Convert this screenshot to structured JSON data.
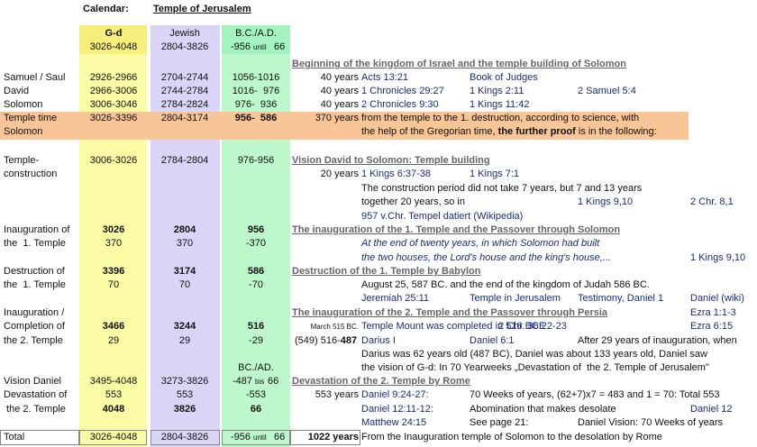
{
  "rows": [
    [
      "Calendar:",
      "Temple of Jerusalem"
    ],
    [
      "G-d",
      "Jewish",
      "B.C./A.D."
    ],
    [
      "3026-4048",
      "2804-3826",
      "-956",
      "until",
      "66"
    ],
    [
      "Beginning of the kingdom of Israel and the temple building of Solomon"
    ],
    [
      "Samuel / Saul",
      "2926-2966",
      "2704-2744",
      "1056-1016",
      "40 years",
      "Acts 13:21",
      "Book of Judges"
    ],
    [
      "David",
      "2966-3006",
      "2744-2784",
      "1016-  976",
      "40 years",
      "1 Chronicles 29:27",
      "1 Kings 2:11",
      "2 Samuel 5:4"
    ],
    [
      "Solomon",
      "3006-3046",
      "2784-2824",
      "976-  936",
      "40 years",
      "2 Chronicles 9:30",
      "1 Kings 11:42"
    ],
    [
      "Temple time",
      "3026-3396",
      "2804-3174",
      "956-  586",
      "370 years",
      "from the temple to the 1. destruction, according to science, with"
    ],
    [
      "Solomon",
      "the help of the Gregorian time, ",
      "the further proof",
      " is in the following:"
    ],
    [
      "Temple-",
      "3006-3026",
      "2784-2804",
      "976-956",
      "Vision David to Solomon: Temple building"
    ],
    [
      "construction",
      "20 years",
      "1 Kings 6:37-38",
      "1 Kings 7:1"
    ],
    [
      "The construction period did not take 7 years, but 7 and 13 years"
    ],
    [
      "together 20 years, so in",
      "1 Kings 9,10",
      "2 Chr. 8,1"
    ],
    [
      "957 v.Chr. Tempel datiert (Wikipedia)"
    ],
    [
      "Inauguration of",
      "3026",
      "2804",
      "956",
      "The inauguration of the 1. Temple and the Passover through Solomon"
    ],
    [
      "the  1. Temple",
      "370",
      "370",
      "-370",
      "At the end of twenty years, in which Solomon had built"
    ],
    [
      "the two houses, the Lord's house and the king's house,...",
      "1 Kings 9,10"
    ],
    [
      "Destruction of",
      "3396",
      "3174",
      "586",
      "Destruction of the 1. Temple by Babylon"
    ],
    [
      "the  1. Temple",
      "70",
      "70",
      "-70",
      "August 25, 587 BC. and the end of the kingdom of Judah 586 BC."
    ],
    [
      "Jeremiah 25:11",
      "Temple in Jerusalem",
      "Testimony, Daniel 1",
      "Daniel (wiki)"
    ],
    [
      "Inauguration /",
      "The inauguration of the 2. Temple and the Passover through Persia",
      "Ezra 1:1-3"
    ],
    [
      "Completion of",
      "3466",
      "3244",
      "516",
      "March 515 BC.",
      "Temple Mount was completed in 516 BCE",
      "2 Chr. 36:22-23",
      "Ezra 6:15"
    ],
    [
      "the 2. Temple",
      "29",
      "29",
      "-29",
      "(549) 516-",
      "487",
      "Darius I",
      "Daniel 6:1",
      "After 29 years of inauguration, when"
    ],
    [
      "Darius was 62 years old (487 BC), Daniel was about 133 years old, Daniel saw"
    ],
    [
      "BC./AD.",
      "the vision of G-d: In 70 Yearweeks „Devastation of  the 2. Temple of Jerusalem\""
    ],
    [
      "Vision Daniel",
      "3495-4048",
      "3273-3826",
      "-487",
      "bis",
      "66",
      "Devastation of the 2. Temple by Rome"
    ],
    [
      "Devastation of",
      "553",
      "553",
      "-553",
      "553 years",
      "Daniel 9:24-27:",
      "70 Weeks of years, (62+7)x7 = 483 and 1 = 70: Total 553"
    ],
    [
      " the 2. Temple",
      "4048",
      "3826",
      "66",
      "Daniel 12:11-12:",
      "Abomination that makes desolate",
      "Daniel 12"
    ],
    [
      "Matthew 24:15",
      "See page 21:",
      "Daniel Vision: 70 Weeks of years"
    ],
    [
      "Total",
      "3026-4048",
      "2804-3826",
      "-956",
      "until",
      "66",
      "1022 years",
      "From the Inauguration temple of Solomon to the desolation by Rome"
    ]
  ]
}
